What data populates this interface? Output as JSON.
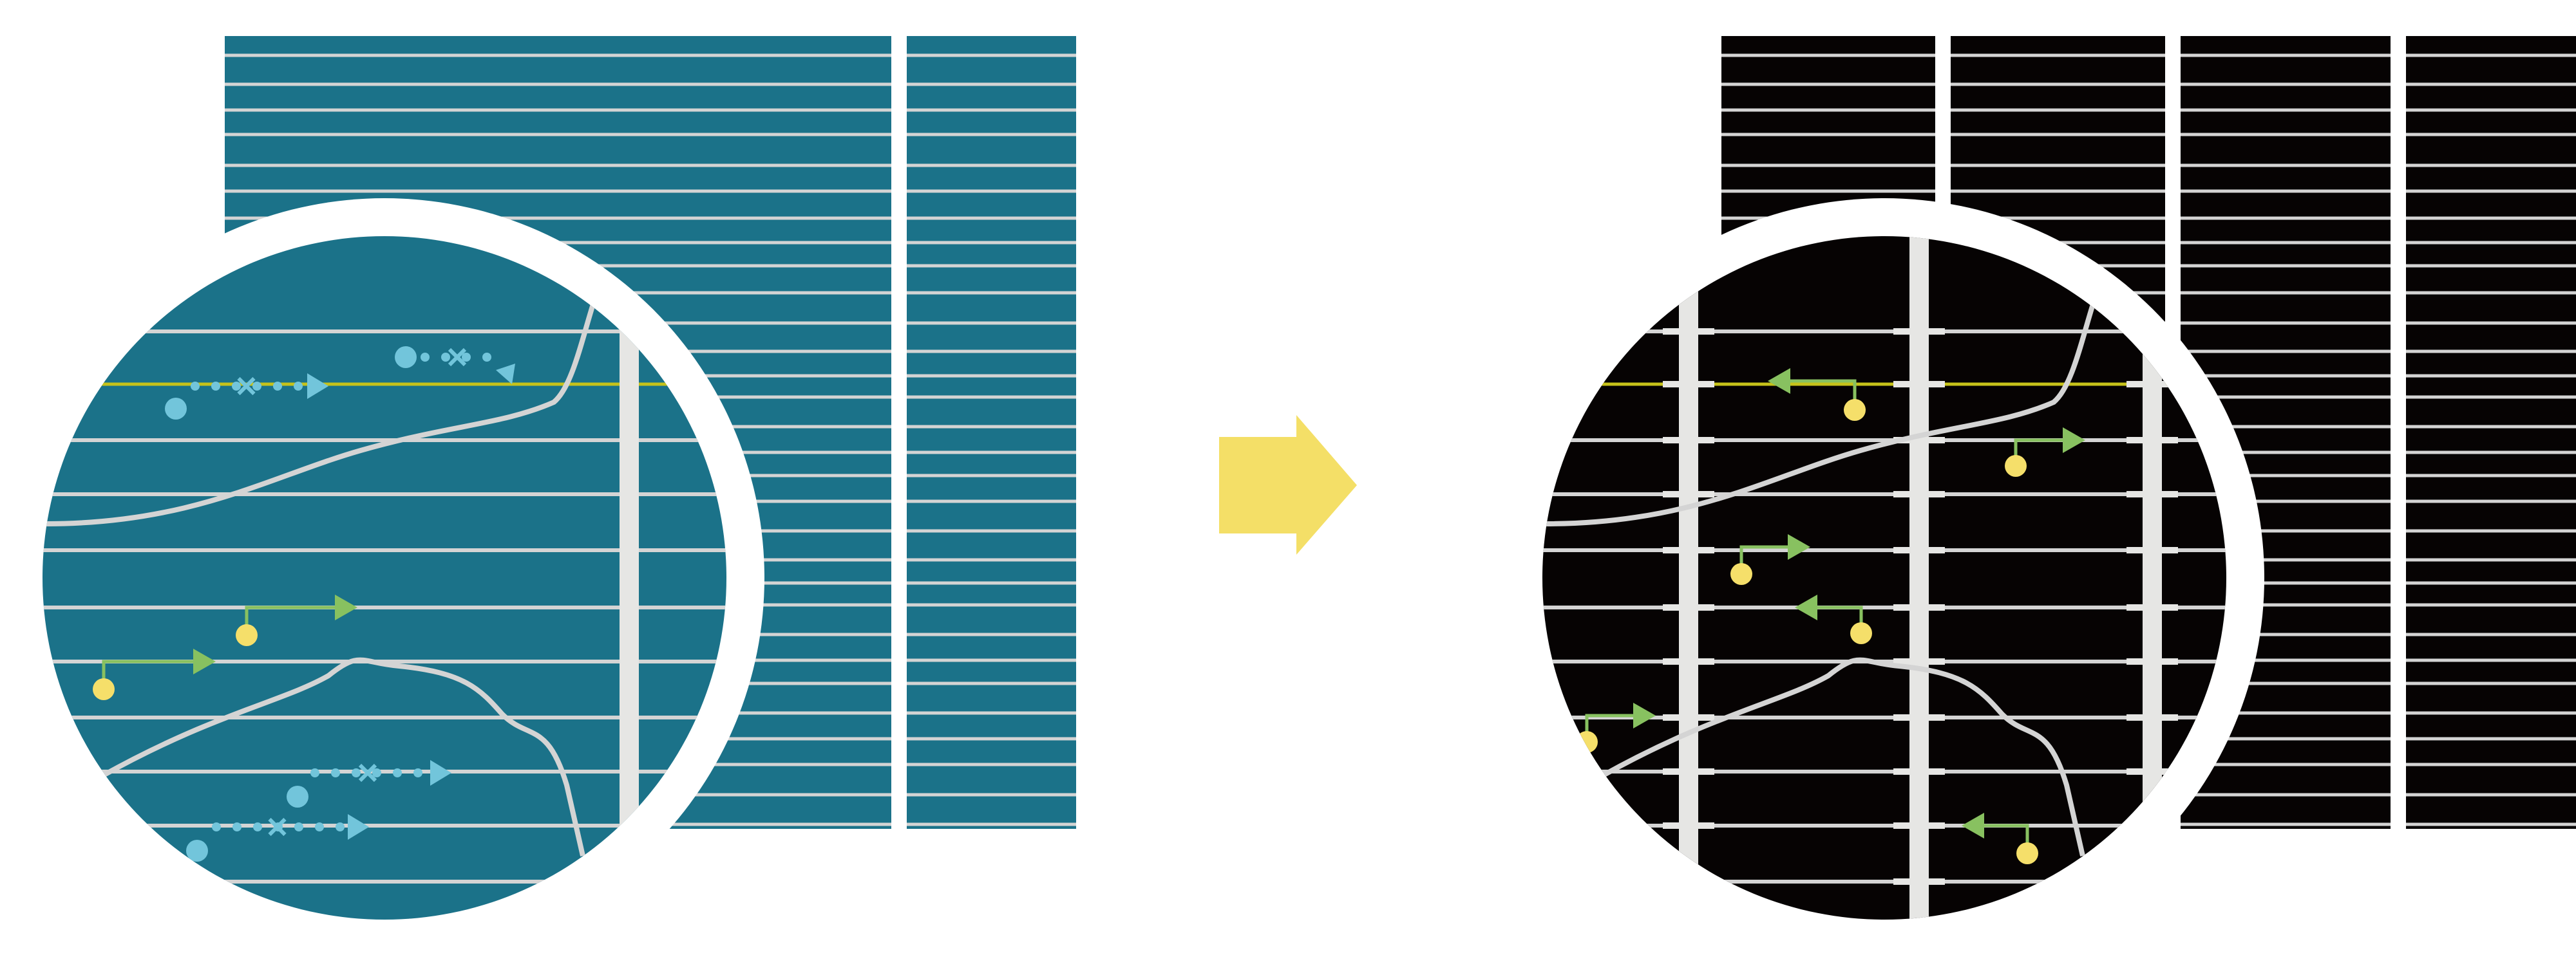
{
  "colors": {
    "before_panel": "#1b7289",
    "after_panel": "#060303",
    "grid_line": "#d4d4d4",
    "column_bar": "#e6e6e4",
    "highlight_line": "#c6c21a",
    "transition_arrow": "#f4df67",
    "marker_blue": "#72c5db",
    "marker_yellow": "#f5df6a",
    "marker_green": "#88c160",
    "ring": "#ffffff"
  },
  "icons": {
    "transition": "right-arrow-icon",
    "before_marker": "dotted-arrow-icon",
    "after_marker": "pin-arrow-icon"
  }
}
